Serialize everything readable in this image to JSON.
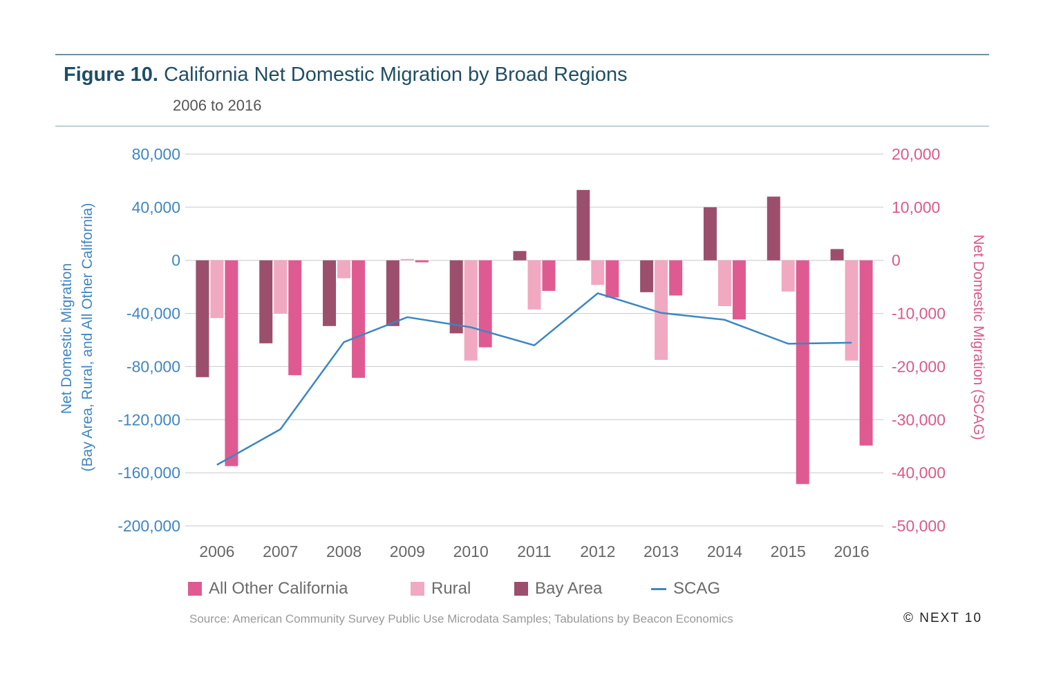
{
  "header": {
    "title_lead": "Figure 10.",
    "title_rest": "California Net Domestic Migration by Broad Regions",
    "subtitle": "2006 to 2016"
  },
  "footer": {
    "source": "Source: American Community Survey Public Use Microdata Samples; Tabulations by Beacon Economics",
    "copyright": "© NEXT 10"
  },
  "colors": {
    "all_other_california": "#e05a92",
    "rural": "#f0a9c0",
    "bay_area": "#9c4f6c",
    "scag": "#3a86c4",
    "left_axis_text": "#3f86c2",
    "right_axis_text": "#d95a8a",
    "gridline": "#c8c8c8"
  },
  "chart_data": {
    "type": "bar",
    "categories": [
      "2006",
      "2007",
      "2008",
      "2009",
      "2010",
      "2011",
      "2012",
      "2013",
      "2014",
      "2015",
      "2016"
    ],
    "series": [
      {
        "name": "Bay Area",
        "axis": "left",
        "chart_type": "bar",
        "values": [
          -88000,
          -62500,
          -49500,
          -49500,
          -55000,
          7000,
          53000,
          -24000,
          40000,
          48000,
          8500
        ]
      },
      {
        "name": "Rural",
        "axis": "left",
        "chart_type": "bar",
        "values": [
          -43500,
          -40000,
          -13500,
          1000,
          -75500,
          -37000,
          -18500,
          -75000,
          -34500,
          -23500,
          -75500
        ]
      },
      {
        "name": "All Other California",
        "axis": "left",
        "chart_type": "bar",
        "values": [
          -155000,
          -86500,
          -88500,
          -1500,
          -65500,
          -23000,
          -28000,
          -26500,
          -44500,
          -168500,
          -139500
        ]
      },
      {
        "name": "SCAG",
        "axis": "right",
        "chart_type": "line",
        "values": [
          -38500,
          -31800,
          -15400,
          -10700,
          -12600,
          -16000,
          -6200,
          -9900,
          -11200,
          -15700,
          -15500
        ]
      }
    ],
    "y_left": {
      "label_line1": "Net Domestic Migration",
      "label_line2": "(Bay Area, Rural, and All Other California)",
      "ylim": [
        -200000,
        80000
      ],
      "ticks": [
        80000,
        40000,
        0,
        -40000,
        -80000,
        -120000,
        -160000,
        -200000
      ],
      "tick_labels": [
        "80,000",
        "40,000",
        "0",
        "-40,000",
        "-80,000",
        "-120,000",
        "-160,000",
        "-200,000"
      ]
    },
    "y_right": {
      "label": "Net Domestic Migration (SCAG)",
      "ylim": [
        -50000,
        20000
      ],
      "ticks": [
        20000,
        10000,
        0,
        -10000,
        -20000,
        -30000,
        -40000,
        -50000
      ],
      "tick_labels": [
        "20,000",
        "10,000",
        "0",
        "-10,000",
        "-20,000",
        "-30,000",
        "-40,000",
        "-50,000"
      ]
    },
    "legend": {
      "position": "bottom",
      "items": [
        "All Other California",
        "Rural",
        "Bay Area",
        "SCAG"
      ]
    },
    "grid": true
  }
}
